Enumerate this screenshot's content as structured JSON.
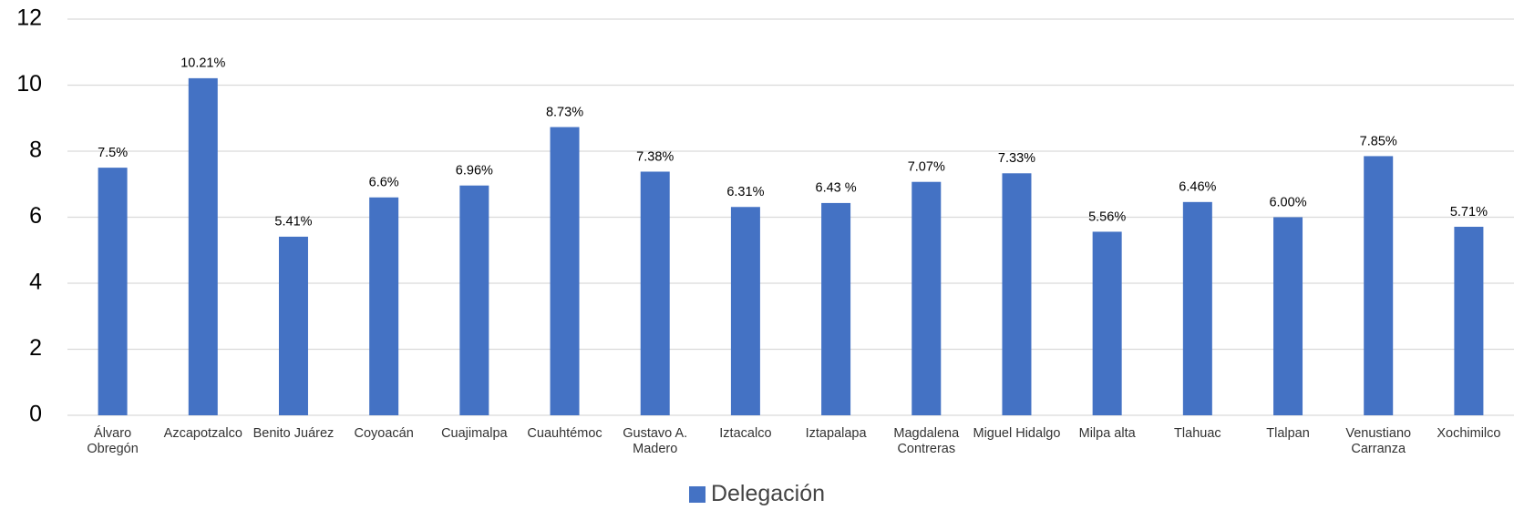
{
  "chart_data": {
    "type": "bar",
    "categories": [
      "Álvaro Obregón",
      "Azcapotzalco",
      "Benito Juárez",
      "Coyoacán",
      "Cuajimalpa",
      "Cuauhtémoc",
      "Gustavo A. Madero",
      "Iztacalco",
      "Iztapalapa",
      "Magdalena Contreras",
      "Miguel Hidalgo",
      "Milpa alta",
      "Tlahuac",
      "Tlalpan",
      "Venustiano Carranza",
      "Xochimilco"
    ],
    "series": [
      {
        "name": "Delegación",
        "color": "#4472c4",
        "values": [
          7.5,
          10.21,
          5.41,
          6.6,
          6.96,
          8.73,
          7.38,
          6.31,
          6.43,
          7.07,
          7.33,
          5.56,
          6.46,
          6.0,
          7.85,
          5.71
        ],
        "value_labels": [
          "7.5%",
          "10.21%",
          "5.41%",
          "6.6%",
          "6.96%",
          "8.73%",
          "7.38%",
          "6.31%",
          "6.43 %",
          "7.07%",
          "7.33%",
          "5.56%",
          "6.46%",
          "6.00%",
          "7.85%",
          "5.71%"
        ]
      }
    ],
    "ylim": [
      0,
      12
    ],
    "yticks": [
      0,
      2,
      4,
      6,
      8,
      10,
      12
    ],
    "grid": true,
    "legend": "bottom"
  }
}
